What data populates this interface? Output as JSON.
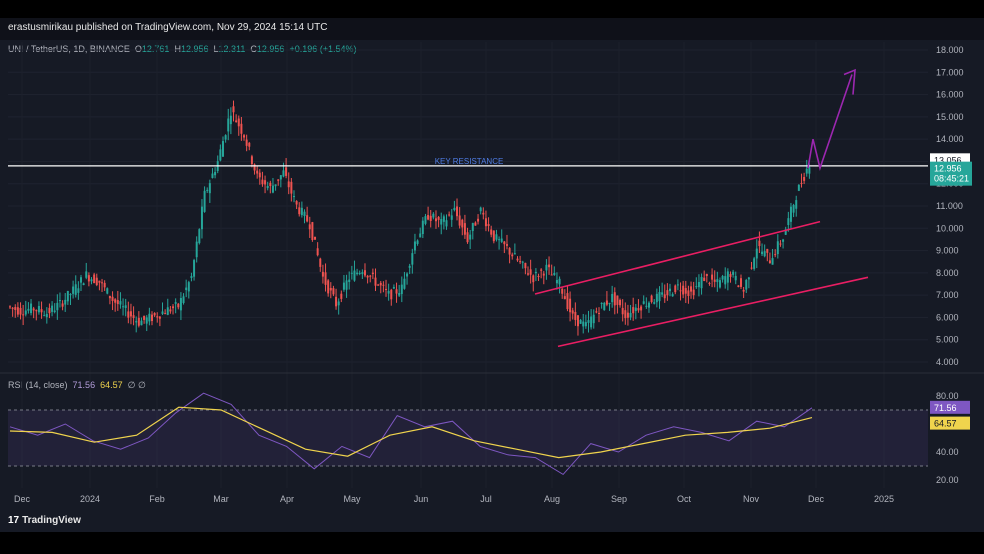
{
  "publisher_line": "erastusmirikau published on TradingView.com, Nov 29, 2024 15:14 UTC",
  "symbol_bar": {
    "symbol": "UNI / TetherUS, 1D, BINANCE",
    "open_label": "O",
    "open": "12.761",
    "high_label": "H",
    "high": "12.956",
    "low_label": "L",
    "low": "12.311",
    "close_label": "C",
    "close": "12.956",
    "change": "+0.196 (+1.54%)"
  },
  "rsi_legend": {
    "label": "RSI (14, close)",
    "rsi": "71.56",
    "ma": "64.57",
    "extra": "∅ ∅"
  },
  "footer": {
    "logo": "17",
    "brand": "TradingView"
  },
  "colors": {
    "up": "#26a69a",
    "down": "#ef5350",
    "channel": "#e91e63",
    "arrow": "#9c27b0",
    "rsi_line": "#7e57c2",
    "rsi_ma": "#f0d44d"
  },
  "chart_data": {
    "type": "candlestick",
    "price_axis": {
      "min": 4.0,
      "max": 18.0,
      "ticks": [
        "18.000",
        "17.000",
        "16.000",
        "15.000",
        "14.000",
        "13.000",
        "12.000",
        "11.000",
        "10.000",
        "9.000",
        "8.000",
        "7.000",
        "6.000",
        "5.000",
        "4.000"
      ]
    },
    "rsi_axis": {
      "min": 20,
      "max": 80,
      "ticks": [
        "80.00",
        "40.00",
        "20.00"
      ],
      "band": [
        30,
        70
      ]
    },
    "x_axis_labels": [
      "Dec",
      "2024",
      "Feb",
      "Mar",
      "Apr",
      "May",
      "Jun",
      "Jul",
      "Aug",
      "Sep",
      "Oct",
      "Nov",
      "Dec",
      "2025"
    ],
    "key_resistance": {
      "label": "KEY RESISTANCE",
      "value": 12.8
    },
    "price_labels": {
      "line": "13.056",
      "last": "12.956",
      "countdown": "08:45:21"
    },
    "rsi_labels": {
      "rsi": "71.56",
      "ma": "64.57"
    },
    "series": [
      {
        "name": "UNI / TetherUS",
        "points": [
          [
            "Dec",
            6.5
          ],
          [
            "Dec",
            6.3
          ],
          [
            "Dec",
            6.4
          ],
          [
            "Dec",
            6.2
          ],
          [
            "Dec",
            6.6
          ],
          [
            "2024",
            7.2
          ],
          [
            "2024",
            7.9
          ],
          [
            "2024",
            7.6
          ],
          [
            "2024",
            6.8
          ],
          [
            "2024",
            6.3
          ],
          [
            "Feb",
            5.8
          ],
          [
            "Feb",
            6.0
          ],
          [
            "Feb",
            6.3
          ],
          [
            "Feb",
            6.5
          ],
          [
            "Feb",
            7.8
          ],
          [
            "Feb",
            11.5
          ],
          [
            "Mar",
            13.0
          ],
          [
            "Mar",
            15.3
          ],
          [
            "Mar",
            14.2
          ],
          [
            "Mar",
            12.3
          ],
          [
            "Mar",
            11.8
          ],
          [
            "Apr",
            12.5
          ],
          [
            "Apr",
            11.0
          ],
          [
            "Apr",
            10.2
          ],
          [
            "Apr",
            7.8
          ],
          [
            "Apr",
            6.6
          ],
          [
            "May",
            7.8
          ],
          [
            "May",
            8.2
          ],
          [
            "May",
            7.6
          ],
          [
            "May",
            7.0
          ],
          [
            "May",
            7.3
          ],
          [
            "Jun",
            9.4
          ],
          [
            "Jun",
            10.6
          ],
          [
            "Jun",
            10.2
          ],
          [
            "Jun",
            10.8
          ],
          [
            "Jun",
            9.5
          ],
          [
            "Jun",
            10.8
          ],
          [
            "Jul",
            9.6
          ],
          [
            "Jul",
            9.1
          ],
          [
            "Jul",
            8.4
          ],
          [
            "Jul",
            7.8
          ],
          [
            "Jul",
            8.2
          ],
          [
            "Aug",
            7.5
          ],
          [
            "Aug",
            6.0
          ],
          [
            "Aug",
            5.6
          ],
          [
            "Aug",
            6.4
          ],
          [
            "Sep",
            6.9
          ],
          [
            "Sep",
            6.1
          ],
          [
            "Sep",
            6.5
          ],
          [
            "Sep",
            6.8
          ],
          [
            "Oct",
            7.0
          ],
          [
            "Oct",
            7.4
          ],
          [
            "Oct",
            7.1
          ],
          [
            "Oct",
            7.8
          ],
          [
            "Oct",
            7.5
          ],
          [
            "Nov",
            8.0
          ],
          [
            "Nov",
            7.2
          ],
          [
            "Nov",
            9.2
          ],
          [
            "Nov",
            8.6
          ],
          [
            "Nov",
            9.6
          ],
          [
            "Nov",
            11.5
          ],
          [
            "Nov",
            12.96
          ]
        ]
      },
      {
        "name": "RSI (14, close)",
        "points": [
          [
            "Dec",
            58
          ],
          [
            "Dec",
            52
          ],
          [
            "2024",
            60
          ],
          [
            "2024",
            48
          ],
          [
            "Feb",
            42
          ],
          [
            "Feb",
            50
          ],
          [
            "Feb",
            68
          ],
          [
            "Mar",
            82
          ],
          [
            "Mar",
            74
          ],
          [
            "Apr",
            52
          ],
          [
            "Apr",
            44
          ],
          [
            "May",
            28
          ],
          [
            "May",
            44
          ],
          [
            "May",
            36
          ],
          [
            "Jun",
            66
          ],
          [
            "Jun",
            58
          ],
          [
            "Jun",
            62
          ],
          [
            "Jul",
            44
          ],
          [
            "Jul",
            38
          ],
          [
            "Aug",
            36
          ],
          [
            "Aug",
            24
          ],
          [
            "Sep",
            46
          ],
          [
            "Sep",
            40
          ],
          [
            "Oct",
            52
          ],
          [
            "Oct",
            58
          ],
          [
            "Oct",
            54
          ],
          [
            "Nov",
            48
          ],
          [
            "Nov",
            62
          ],
          [
            "Nov",
            58
          ],
          [
            "Dec",
            71.56
          ]
        ]
      },
      {
        "name": "RSI MA",
        "points": [
          [
            "Dec",
            55
          ],
          [
            "2024",
            54
          ],
          [
            "Feb",
            47
          ],
          [
            "Feb",
            52
          ],
          [
            "Mar",
            72
          ],
          [
            "Mar",
            70
          ],
          [
            "Apr",
            56
          ],
          [
            "May",
            42
          ],
          [
            "May",
            37
          ],
          [
            "Jun",
            52
          ],
          [
            "Jun",
            58
          ],
          [
            "Jul",
            48
          ],
          [
            "Aug",
            42
          ],
          [
            "Aug",
            36
          ],
          [
            "Sep",
            40
          ],
          [
            "Oct",
            46
          ],
          [
            "Oct",
            52
          ],
          [
            "Nov",
            54
          ],
          [
            "Nov",
            57
          ],
          [
            "Dec",
            64.57
          ]
        ]
      }
    ]
  }
}
